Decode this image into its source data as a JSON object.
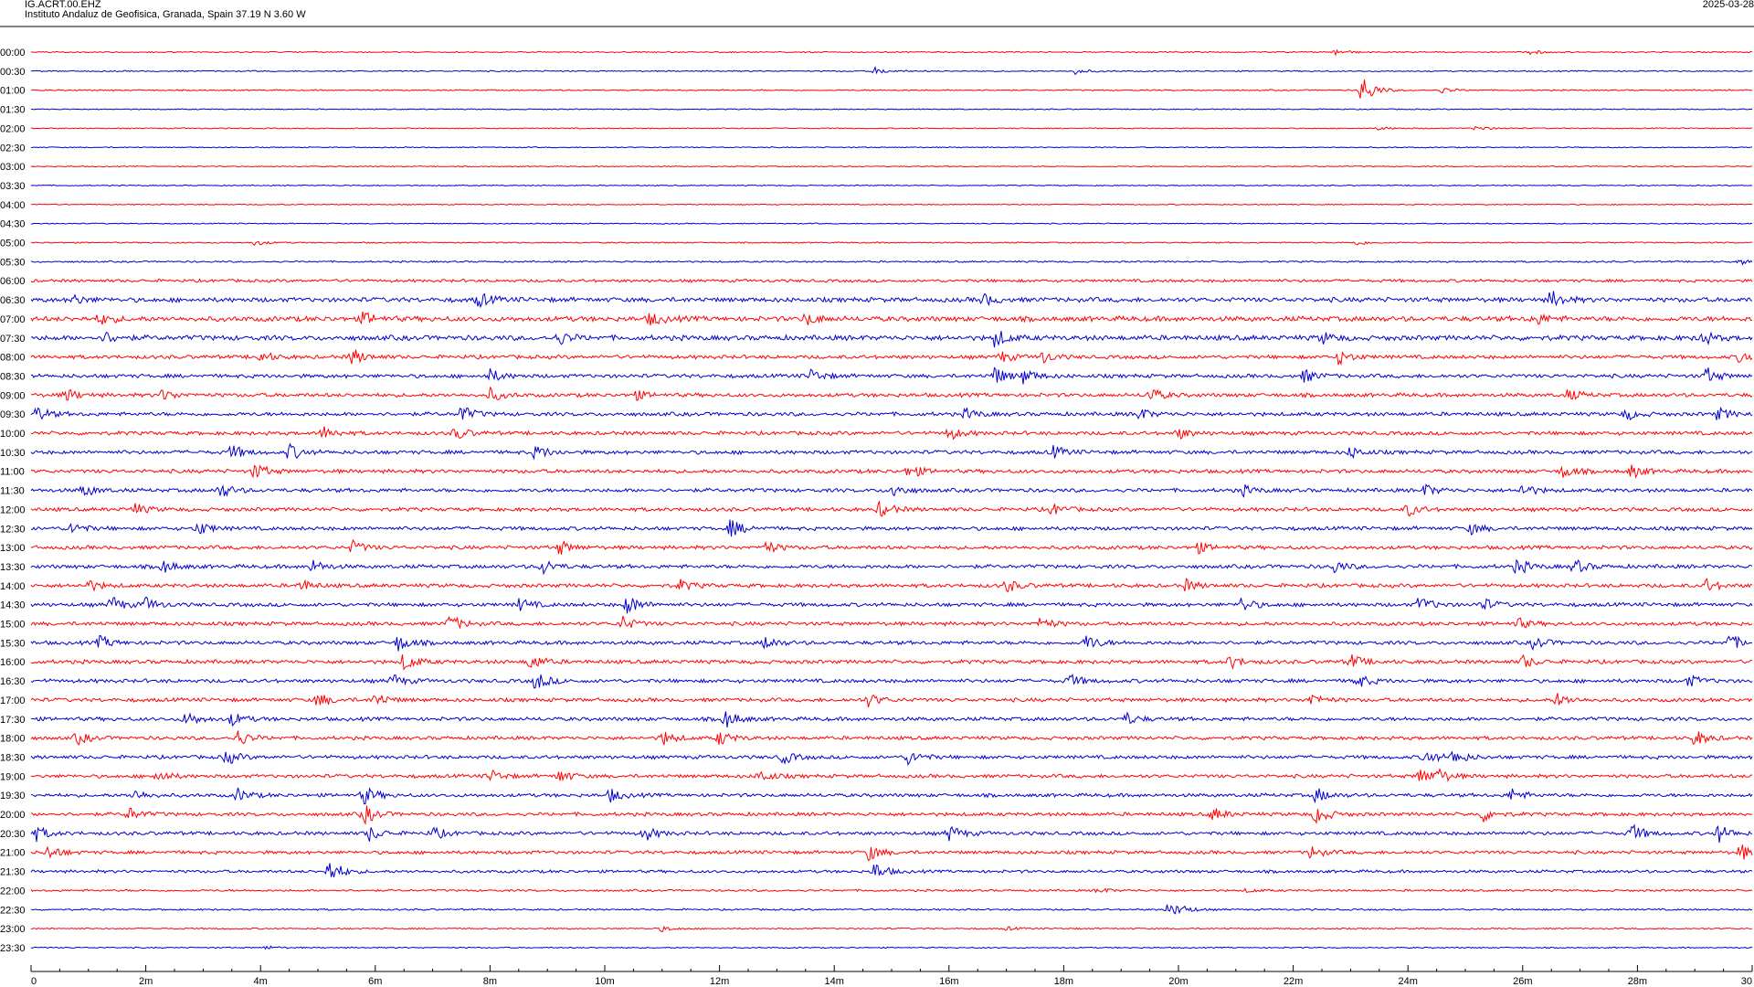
{
  "header": {
    "station": "IG.ACRT.00.EHZ",
    "location": "Instituto Andaluz de Geofisica, Granada, Spain  37.19 N 3.60 W",
    "date": "2025-03-28"
  },
  "colors": {
    "trace_a": "#ff0000",
    "trace_b": "#0000cc",
    "axis": "#000000",
    "background": "#ffffff"
  },
  "chart_data": {
    "type": "line",
    "title": "",
    "xlabel": "",
    "ylabel": "",
    "xlim_minutes": [
      0,
      30
    ],
    "x_ticks": [
      "0",
      "2m",
      "4m",
      "6m",
      "8m",
      "10m",
      "12m",
      "14m",
      "16m",
      "18m",
      "20m",
      "22m",
      "24m",
      "26m",
      "28m",
      "30"
    ],
    "row_labels": [
      "00:00",
      "00:30",
      "01:00",
      "01:30",
      "02:00",
      "02:30",
      "03:00",
      "03:30",
      "04:00",
      "04:30",
      "05:00",
      "05:30",
      "06:00",
      "06:30",
      "07:00",
      "07:30",
      "08:00",
      "08:30",
      "09:00",
      "09:30",
      "10:00",
      "10:30",
      "11:00",
      "11:30",
      "12:00",
      "12:30",
      "13:00",
      "13:30",
      "14:00",
      "14:30",
      "15:00",
      "15:30",
      "16:00",
      "16:30",
      "17:00",
      "17:30",
      "18:00",
      "18:30",
      "19:00",
      "19:30",
      "20:00",
      "20:30",
      "21:00",
      "21:30",
      "22:00",
      "22:30",
      "23:00",
      "23:30"
    ],
    "noise_level": [
      0.6,
      0.6,
      0.6,
      0.5,
      0.5,
      0.5,
      0.5,
      0.5,
      0.5,
      0.5,
      0.6,
      0.8,
      1.4,
      2.2,
      2.4,
      2.4,
      1.8,
      1.8,
      1.8,
      1.8,
      1.8,
      1.8,
      1.8,
      1.8,
      1.8,
      1.8,
      1.8,
      1.8,
      1.8,
      1.8,
      1.8,
      1.8,
      1.8,
      1.8,
      1.8,
      1.8,
      1.7,
      1.7,
      1.7,
      1.7,
      1.7,
      1.7,
      1.6,
      1.4,
      1.0,
      0.8,
      0.7,
      0.6
    ],
    "events": [
      {
        "row": 0,
        "t": 22.7,
        "a": 4
      },
      {
        "row": 0,
        "t": 26.1,
        "a": 3
      },
      {
        "row": 1,
        "t": 14.7,
        "a": 4
      },
      {
        "row": 1,
        "t": 18.2,
        "a": 3
      },
      {
        "row": 2,
        "t": 23.2,
        "a": 18
      },
      {
        "row": 2,
        "t": 24.6,
        "a": 3
      },
      {
        "row": 4,
        "t": 23.5,
        "a": 2
      },
      {
        "row": 4,
        "t": 25.2,
        "a": 3
      },
      {
        "row": 10,
        "t": 3.9,
        "a": 3
      },
      {
        "row": 10,
        "t": 23.1,
        "a": 3
      },
      {
        "row": 11,
        "t": 29.8,
        "a": 3
      },
      {
        "row": 13,
        "t": 0.7,
        "a": 6
      },
      {
        "row": 13,
        "t": 7.8,
        "a": 8
      },
      {
        "row": 13,
        "t": 16.6,
        "a": 6
      },
      {
        "row": 13,
        "t": 26.5,
        "a": 10
      },
      {
        "row": 14,
        "t": 1.2,
        "a": 6
      },
      {
        "row": 14,
        "t": 5.8,
        "a": 7
      },
      {
        "row": 14,
        "t": 10.8,
        "a": 7
      },
      {
        "row": 14,
        "t": 13.5,
        "a": 7
      },
      {
        "row": 14,
        "t": 26.2,
        "a": 7
      },
      {
        "row": 15,
        "t": 1.3,
        "a": 6
      },
      {
        "row": 15,
        "t": 9.2,
        "a": 7
      },
      {
        "row": 15,
        "t": 16.8,
        "a": 10
      },
      {
        "row": 15,
        "t": 22.5,
        "a": 6
      },
      {
        "row": 15,
        "t": 29.1,
        "a": 8
      },
      {
        "row": 16,
        "t": 4.0,
        "a": 6
      },
      {
        "row": 16,
        "t": 5.6,
        "a": 9
      },
      {
        "row": 16,
        "t": 16.9,
        "a": 6
      },
      {
        "row": 16,
        "t": 17.6,
        "a": 7
      },
      {
        "row": 16,
        "t": 22.8,
        "a": 8
      },
      {
        "row": 16,
        "t": 29.8,
        "a": 7
      },
      {
        "row": 17,
        "t": 8.0,
        "a": 7
      },
      {
        "row": 17,
        "t": 13.6,
        "a": 7
      },
      {
        "row": 17,
        "t": 16.8,
        "a": 10
      },
      {
        "row": 17,
        "t": 17.3,
        "a": 8
      },
      {
        "row": 17,
        "t": 22.2,
        "a": 7
      },
      {
        "row": 17,
        "t": 29.2,
        "a": 9
      },
      {
        "row": 18,
        "t": 0.6,
        "a": 7
      },
      {
        "row": 18,
        "t": 2.3,
        "a": 6
      },
      {
        "row": 18,
        "t": 8.0,
        "a": 7
      },
      {
        "row": 18,
        "t": 10.5,
        "a": 6
      },
      {
        "row": 18,
        "t": 19.5,
        "a": 8
      },
      {
        "row": 18,
        "t": 26.8,
        "a": 6
      },
      {
        "row": 19,
        "t": 0.1,
        "a": 8
      },
      {
        "row": 19,
        "t": 7.5,
        "a": 9
      },
      {
        "row": 19,
        "t": 16.3,
        "a": 6
      },
      {
        "row": 19,
        "t": 19.3,
        "a": 7
      },
      {
        "row": 19,
        "t": 27.8,
        "a": 6
      },
      {
        "row": 19,
        "t": 29.4,
        "a": 7
      },
      {
        "row": 20,
        "t": 5.1,
        "a": 7
      },
      {
        "row": 20,
        "t": 7.4,
        "a": 7
      },
      {
        "row": 20,
        "t": 16.0,
        "a": 7
      },
      {
        "row": 20,
        "t": 20.0,
        "a": 6
      },
      {
        "row": 21,
        "t": 3.5,
        "a": 8
      },
      {
        "row": 21,
        "t": 4.5,
        "a": 9
      },
      {
        "row": 21,
        "t": 8.8,
        "a": 8
      },
      {
        "row": 21,
        "t": 17.8,
        "a": 7
      },
      {
        "row": 21,
        "t": 23.0,
        "a": 6
      },
      {
        "row": 22,
        "t": 3.9,
        "a": 9
      },
      {
        "row": 22,
        "t": 15.3,
        "a": 8
      },
      {
        "row": 22,
        "t": 26.7,
        "a": 7
      },
      {
        "row": 22,
        "t": 27.9,
        "a": 7
      },
      {
        "row": 23,
        "t": 0.9,
        "a": 7
      },
      {
        "row": 23,
        "t": 3.3,
        "a": 8
      },
      {
        "row": 23,
        "t": 15.0,
        "a": 8
      },
      {
        "row": 23,
        "t": 21.1,
        "a": 6
      },
      {
        "row": 23,
        "t": 24.3,
        "a": 6
      },
      {
        "row": 23,
        "t": 26.0,
        "a": 7
      },
      {
        "row": 24,
        "t": 1.8,
        "a": 6
      },
      {
        "row": 24,
        "t": 14.8,
        "a": 9
      },
      {
        "row": 24,
        "t": 17.8,
        "a": 6
      },
      {
        "row": 24,
        "t": 24.0,
        "a": 7
      },
      {
        "row": 25,
        "t": 0.7,
        "a": 7
      },
      {
        "row": 25,
        "t": 2.9,
        "a": 8
      },
      {
        "row": 25,
        "t": 12.2,
        "a": 10
      },
      {
        "row": 25,
        "t": 25.1,
        "a": 6
      },
      {
        "row": 26,
        "t": 5.6,
        "a": 7
      },
      {
        "row": 26,
        "t": 9.2,
        "a": 8
      },
      {
        "row": 26,
        "t": 12.8,
        "a": 7
      },
      {
        "row": 26,
        "t": 20.3,
        "a": 7
      },
      {
        "row": 27,
        "t": 2.3,
        "a": 7
      },
      {
        "row": 27,
        "t": 4.9,
        "a": 7
      },
      {
        "row": 27,
        "t": 8.9,
        "a": 9
      },
      {
        "row": 27,
        "t": 22.7,
        "a": 7
      },
      {
        "row": 27,
        "t": 25.9,
        "a": 9
      },
      {
        "row": 27,
        "t": 26.9,
        "a": 8
      },
      {
        "row": 28,
        "t": 1.0,
        "a": 6
      },
      {
        "row": 28,
        "t": 4.7,
        "a": 6
      },
      {
        "row": 28,
        "t": 11.3,
        "a": 6
      },
      {
        "row": 28,
        "t": 17.0,
        "a": 7
      },
      {
        "row": 28,
        "t": 20.1,
        "a": 7
      },
      {
        "row": 28,
        "t": 29.2,
        "a": 7
      },
      {
        "row": 29,
        "t": 1.4,
        "a": 9
      },
      {
        "row": 29,
        "t": 2.0,
        "a": 7
      },
      {
        "row": 29,
        "t": 8.5,
        "a": 7
      },
      {
        "row": 29,
        "t": 10.4,
        "a": 11
      },
      {
        "row": 29,
        "t": 21.1,
        "a": 8
      },
      {
        "row": 29,
        "t": 24.2,
        "a": 9
      },
      {
        "row": 29,
        "t": 25.3,
        "a": 7
      },
      {
        "row": 30,
        "t": 7.3,
        "a": 9
      },
      {
        "row": 30,
        "t": 10.3,
        "a": 8
      },
      {
        "row": 30,
        "t": 17.6,
        "a": 7
      },
      {
        "row": 30,
        "t": 25.9,
        "a": 6
      },
      {
        "row": 31,
        "t": 1.2,
        "a": 7
      },
      {
        "row": 31,
        "t": 6.4,
        "a": 9
      },
      {
        "row": 31,
        "t": 12.8,
        "a": 7
      },
      {
        "row": 31,
        "t": 18.4,
        "a": 9
      },
      {
        "row": 31,
        "t": 26.2,
        "a": 7
      },
      {
        "row": 31,
        "t": 29.6,
        "a": 9
      },
      {
        "row": 32,
        "t": 6.5,
        "a": 10
      },
      {
        "row": 32,
        "t": 8.7,
        "a": 9
      },
      {
        "row": 32,
        "t": 20.9,
        "a": 7
      },
      {
        "row": 32,
        "t": 23.0,
        "a": 8
      },
      {
        "row": 32,
        "t": 26.0,
        "a": 7
      },
      {
        "row": 33,
        "t": 6.3,
        "a": 7
      },
      {
        "row": 33,
        "t": 8.8,
        "a": 10
      },
      {
        "row": 33,
        "t": 18.1,
        "a": 7
      },
      {
        "row": 33,
        "t": 23.1,
        "a": 8
      },
      {
        "row": 33,
        "t": 28.9,
        "a": 6
      },
      {
        "row": 34,
        "t": 5.0,
        "a": 8
      },
      {
        "row": 34,
        "t": 6.0,
        "a": 8
      },
      {
        "row": 34,
        "t": 14.6,
        "a": 7
      },
      {
        "row": 34,
        "t": 22.3,
        "a": 7
      },
      {
        "row": 34,
        "t": 26.6,
        "a": 7
      },
      {
        "row": 35,
        "t": 2.7,
        "a": 8
      },
      {
        "row": 35,
        "t": 3.5,
        "a": 7
      },
      {
        "row": 35,
        "t": 12.1,
        "a": 10
      },
      {
        "row": 35,
        "t": 19.1,
        "a": 6
      },
      {
        "row": 36,
        "t": 0.8,
        "a": 7
      },
      {
        "row": 36,
        "t": 3.6,
        "a": 9
      },
      {
        "row": 36,
        "t": 11.0,
        "a": 8
      },
      {
        "row": 36,
        "t": 12.0,
        "a": 8
      },
      {
        "row": 36,
        "t": 29.0,
        "a": 9
      },
      {
        "row": 37,
        "t": 3.4,
        "a": 8
      },
      {
        "row": 37,
        "t": 13.1,
        "a": 7
      },
      {
        "row": 37,
        "t": 15.3,
        "a": 8
      },
      {
        "row": 37,
        "t": 24.3,
        "a": 8
      },
      {
        "row": 37,
        "t": 24.8,
        "a": 8
      },
      {
        "row": 38,
        "t": 2.2,
        "a": 7
      },
      {
        "row": 38,
        "t": 8.0,
        "a": 7
      },
      {
        "row": 38,
        "t": 9.2,
        "a": 7
      },
      {
        "row": 38,
        "t": 12.7,
        "a": 7
      },
      {
        "row": 38,
        "t": 24.2,
        "a": 9
      },
      {
        "row": 38,
        "t": 24.5,
        "a": 8
      },
      {
        "row": 39,
        "t": 1.8,
        "a": 6
      },
      {
        "row": 39,
        "t": 3.6,
        "a": 7
      },
      {
        "row": 39,
        "t": 5.8,
        "a": 10
      },
      {
        "row": 39,
        "t": 10.1,
        "a": 7
      },
      {
        "row": 39,
        "t": 22.4,
        "a": 8
      },
      {
        "row": 39,
        "t": 25.8,
        "a": 7
      },
      {
        "row": 40,
        "t": 1.7,
        "a": 7
      },
      {
        "row": 40,
        "t": 5.8,
        "a": 11
      },
      {
        "row": 40,
        "t": 20.6,
        "a": 7
      },
      {
        "row": 40,
        "t": 22.4,
        "a": 11
      },
      {
        "row": 40,
        "t": 25.3,
        "a": 8
      },
      {
        "row": 41,
        "t": 0.1,
        "a": 8
      },
      {
        "row": 41,
        "t": 5.9,
        "a": 8
      },
      {
        "row": 41,
        "t": 7.0,
        "a": 7
      },
      {
        "row": 41,
        "t": 10.7,
        "a": 8
      },
      {
        "row": 41,
        "t": 16.0,
        "a": 9
      },
      {
        "row": 41,
        "t": 27.9,
        "a": 10
      },
      {
        "row": 41,
        "t": 29.4,
        "a": 10
      },
      {
        "row": 42,
        "t": 0.3,
        "a": 8
      },
      {
        "row": 42,
        "t": 14.6,
        "a": 9
      },
      {
        "row": 42,
        "t": 22.3,
        "a": 7
      },
      {
        "row": 42,
        "t": 29.8,
        "a": 9
      },
      {
        "row": 43,
        "t": 5.2,
        "a": 14
      },
      {
        "row": 43,
        "t": 14.7,
        "a": 10
      },
      {
        "row": 44,
        "t": 18.6,
        "a": 3
      },
      {
        "row": 44,
        "t": 21.2,
        "a": 2
      },
      {
        "row": 45,
        "t": 19.8,
        "a": 6
      },
      {
        "row": 45,
        "t": 20.0,
        "a": 5
      },
      {
        "row": 46,
        "t": 11.0,
        "a": 3
      },
      {
        "row": 46,
        "t": 17.0,
        "a": 2
      },
      {
        "row": 47,
        "t": 4.1,
        "a": 2
      }
    ]
  }
}
